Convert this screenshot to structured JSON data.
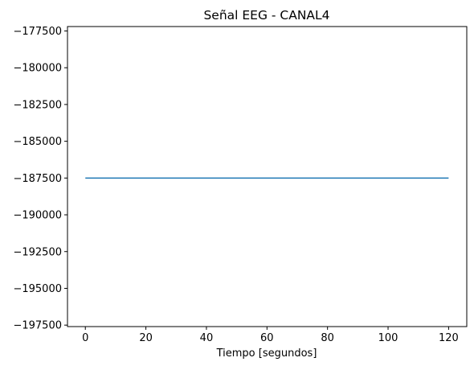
{
  "chart_data": {
    "type": "line",
    "title": "Señal EEG - CANAL4",
    "xlabel": "Tiempo [segundos]",
    "ylabel": "",
    "xlim": [
      -5.9,
      126
    ],
    "ylim": [
      -197600,
      -177200
    ],
    "xticks": [
      0,
      20,
      40,
      60,
      80,
      100,
      120
    ],
    "xtick_labels": [
      "0",
      "20",
      "40",
      "60",
      "80",
      "100",
      "120"
    ],
    "yticks": [
      -177500,
      -180000,
      -182500,
      -185000,
      -187500,
      -190000,
      -192500,
      -195000,
      -197500
    ],
    "ytick_labels": [
      "−177500",
      "−180000",
      "−182500",
      "−185000",
      "−187500",
      "−190000",
      "−192500",
      "−195000",
      "−197500"
    ],
    "grid": false,
    "series": [
      {
        "x": [
          0,
          120
        ],
        "y": [
          -187500,
          -187500
        ],
        "color": "#1f77b4"
      }
    ]
  }
}
